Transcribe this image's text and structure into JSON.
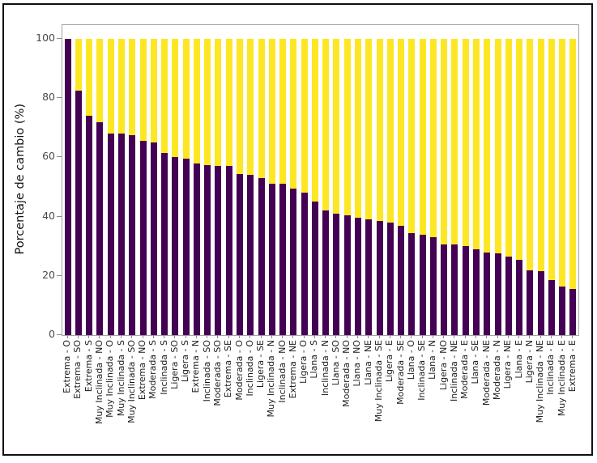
{
  "figure": {
    "background": "#ffffff",
    "frame_color": "#101010"
  },
  "colors": {
    "axis_spine": "#a3a3a3",
    "tick_mark": "#8c8c8c",
    "ytick_text": "#4a4a4a",
    "xtick_text": "#1c1c1c",
    "purple": "#440154",
    "yellow": "#fde725"
  },
  "chart_data": {
    "type": "bar",
    "stacked": true,
    "orientation": "vertical",
    "title": "",
    "xlabel": "",
    "ylabel": "Porcentaje de cambio (%)",
    "ylim": [
      0,
      104.7
    ],
    "yticks": [
      0,
      20,
      40,
      60,
      80,
      100
    ],
    "ytick_labels": [
      "0",
      "20",
      "40",
      "60",
      "80",
      "100"
    ],
    "xtick_rotation": 90,
    "grid": false,
    "legend": "none",
    "categories": [
      "Extrema - O",
      "Extrema - SO",
      "Extrema - S",
      "Muy Inclinada - NO",
      "Muy Inclinada - O",
      "Muy Inclinada - S",
      "Muy Inclinada - SO",
      "Extrema - NO",
      "Moderada - S",
      "Inclinada - S",
      "Ligera - SO",
      "Ligera - S",
      "Extrema - N",
      "Inclinada - SO",
      "Moderada - SO",
      "Extrema - SE",
      "Moderada - O",
      "Inclinada - O",
      "Ligera - SE",
      "Muy Inclinada - N",
      "Inclinada - NO",
      "Extrema - NE",
      "Ligera - O",
      "Llana - S",
      "Inclinada - N",
      "Llana - SO",
      "Moderada - NO",
      "Llana - NO",
      "Llana - NE",
      "Muy Inclinada - SE",
      "Ligera - E",
      "Moderada - SE",
      "Llana - O",
      "Inclinada - SE",
      "Llana - N",
      "Ligera - NO",
      "Inclinada - NE",
      "Moderada - E",
      "Llana - SE",
      "Moderada - NE",
      "Moderada - N",
      "Ligera - NE",
      "Llana - E",
      "Ligera - N",
      "Muy Inclinada - NE",
      "Inclinada - E",
      "Muy Inclinada - E",
      "Extrema - E"
    ],
    "series": [
      {
        "name": "bottom-segment-purple",
        "color": "#440154",
        "values": [
          100,
          82.5,
          74,
          72,
          68,
          68,
          67.5,
          65.5,
          65,
          61.5,
          60,
          59.5,
          58,
          57.5,
          57,
          57,
          54.5,
          54,
          53,
          51,
          51,
          49.5,
          48,
          45,
          42,
          41,
          40.5,
          39.5,
          39,
          38.5,
          38,
          37,
          34.5,
          34,
          33,
          30.5,
          30.5,
          30,
          29,
          28,
          27.5,
          26.5,
          25.5,
          22,
          21.5,
          18.5,
          16.5,
          15.5
        ]
      },
      {
        "name": "top-segment-yellow",
        "color": "#fde725",
        "values": [
          0,
          17.5,
          26,
          28,
          32,
          32,
          32.5,
          34.5,
          35,
          38.5,
          40,
          40.5,
          42,
          42.5,
          43,
          43,
          45.5,
          46,
          47,
          49,
          49,
          50.5,
          52,
          55,
          58,
          59,
          59.5,
          60.5,
          61,
          61.5,
          62,
          63,
          65.5,
          66,
          67,
          69.5,
          69.5,
          70,
          71,
          72,
          72.5,
          73.5,
          74.5,
          78,
          78.5,
          81.5,
          83.5,
          84.5
        ]
      }
    ]
  }
}
